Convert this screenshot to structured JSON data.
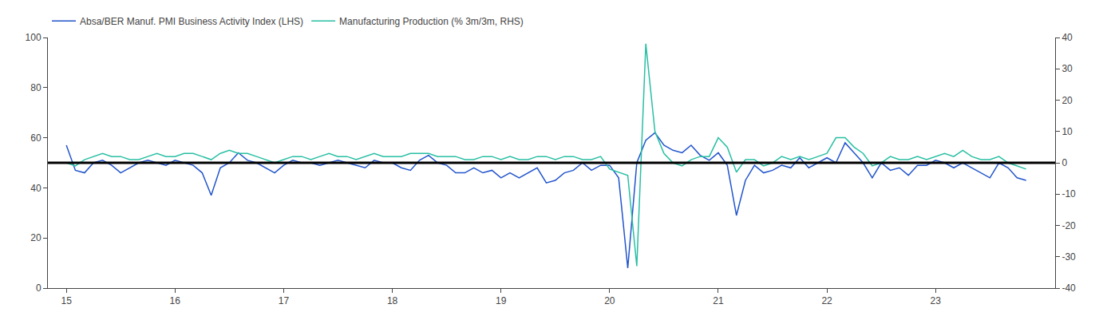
{
  "chart_data": {
    "type": "line",
    "x": [
      15.0,
      15.083,
      15.167,
      15.25,
      15.333,
      15.417,
      15.5,
      15.583,
      15.667,
      15.75,
      15.833,
      15.917,
      16.0,
      16.083,
      16.167,
      16.25,
      16.333,
      16.417,
      16.5,
      16.583,
      16.667,
      16.75,
      16.833,
      16.917,
      17.0,
      17.083,
      17.167,
      17.25,
      17.333,
      17.417,
      17.5,
      17.583,
      17.667,
      17.75,
      17.833,
      17.917,
      18.0,
      18.083,
      18.167,
      18.25,
      18.333,
      18.417,
      18.5,
      18.583,
      18.667,
      18.75,
      18.833,
      18.917,
      19.0,
      19.083,
      19.167,
      19.25,
      19.333,
      19.417,
      19.5,
      19.583,
      19.667,
      19.75,
      19.833,
      19.917,
      20.0,
      20.083,
      20.167,
      20.25,
      20.333,
      20.417,
      20.5,
      20.583,
      20.667,
      20.75,
      20.833,
      20.917,
      21.0,
      21.083,
      21.167,
      21.25,
      21.333,
      21.417,
      21.5,
      21.583,
      21.667,
      21.75,
      21.833,
      21.917,
      22.0,
      22.083,
      22.167,
      22.25,
      22.333,
      22.417,
      22.5,
      22.583,
      22.667,
      22.75,
      22.833,
      22.917,
      23.0,
      23.083,
      23.167,
      23.25,
      23.333,
      23.417,
      23.5,
      23.583,
      23.667,
      23.75,
      23.833
    ],
    "series": [
      {
        "name": "Absa/BER Manuf. PMI Business Activity Index (LHS)",
        "color": "#2255cc",
        "axis": "y",
        "values": [
          57,
          47,
          46,
          50,
          51,
          49,
          46,
          48,
          50,
          51,
          50,
          49,
          51,
          50,
          49,
          46,
          37,
          48,
          50,
          54,
          51,
          50,
          48,
          46,
          49,
          51,
          50,
          50,
          49,
          50,
          51,
          50,
          49,
          48,
          51,
          50,
          50,
          48,
          47,
          51,
          53,
          50,
          49,
          46,
          46,
          48,
          46,
          47,
          44,
          46,
          44,
          46,
          48,
          42,
          43,
          46,
          47,
          50,
          47,
          49,
          49,
          44,
          8,
          50,
          59,
          62,
          57,
          55,
          54,
          57,
          53,
          51,
          54,
          49,
          29,
          43,
          49,
          46,
          47,
          49,
          48,
          52,
          48,
          50,
          52,
          50,
          58,
          54,
          50,
          44,
          50,
          47,
          48,
          45,
          49,
          49,
          51,
          50,
          48,
          50,
          48,
          46,
          44,
          50,
          48,
          44,
          43
        ]
      },
      {
        "name": "Manufacturing Production (% 3m/3m, RHS)",
        "color": "#29bfa3",
        "axis": "y2",
        "values": [
          0,
          -1,
          1,
          2,
          3,
          2,
          2,
          1,
          1,
          2,
          3,
          2,
          2,
          3,
          3,
          2,
          1,
          3,
          4,
          3,
          3,
          2,
          1,
          0,
          1,
          2,
          2,
          1,
          2,
          3,
          2,
          2,
          1,
          2,
          3,
          2,
          2,
          2,
          3,
          3,
          3,
          2,
          2,
          2,
          1,
          1,
          2,
          2,
          1,
          2,
          1,
          1,
          2,
          2,
          1,
          2,
          2,
          1,
          1,
          2,
          -2,
          -3,
          -4,
          -33,
          38,
          10,
          3,
          0,
          -1,
          1,
          2,
          2,
          8,
          5,
          -3,
          1,
          1,
          -1,
          0,
          2,
          1,
          2,
          1,
          2,
          3,
          8,
          8,
          5,
          3,
          -1,
          0,
          2,
          1,
          1,
          2,
          1,
          2,
          3,
          2,
          4,
          2,
          1,
          1,
          2,
          0,
          -1,
          -2
        ]
      }
    ],
    "reference_lines": [
      {
        "axis": "y",
        "value": 50,
        "color": "#000000"
      }
    ],
    "xlim": [
      14.83,
      24.1
    ],
    "xticks": [
      15,
      16,
      17,
      18,
      19,
      20,
      21,
      22,
      23
    ],
    "ylim": [
      0,
      100
    ],
    "yticks": [
      0,
      20,
      40,
      60,
      80,
      100
    ],
    "y2lim": [
      -40,
      40
    ],
    "y2ticks": [
      -40,
      -30,
      -20,
      -10,
      0,
      10,
      20,
      30,
      40
    ],
    "grid": false,
    "legend": "upper left"
  }
}
